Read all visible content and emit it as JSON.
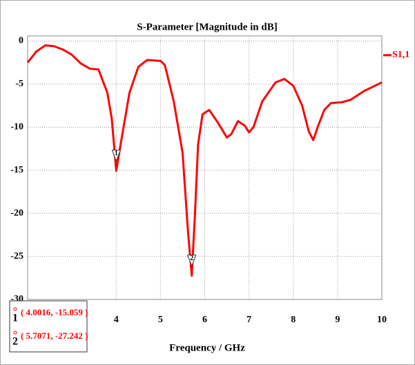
{
  "chart_data": {
    "type": "line",
    "title": "S-Parameter [Magnitude in dB]",
    "xlabel": "Frequency / GHz",
    "xlim": [
      2,
      10
    ],
    "ylim": [
      -30,
      0.6
    ],
    "xticks": [
      4,
      5,
      6,
      7,
      8,
      9,
      10
    ],
    "yticks": [
      0,
      -5,
      -10,
      -15,
      -20,
      -25,
      -30
    ],
    "grid": true,
    "legend": "upper right",
    "series": [
      {
        "name": "S1,1",
        "color": "#ff0000",
        "x": [
          2.0,
          2.2,
          2.4,
          2.6,
          2.8,
          3.0,
          3.2,
          3.4,
          3.6,
          3.8,
          3.9,
          4.0016,
          4.1,
          4.3,
          4.5,
          4.7,
          5.0,
          5.1,
          5.3,
          5.5,
          5.62,
          5.7071,
          5.78,
          5.85,
          5.95,
          6.1,
          6.3,
          6.5,
          6.6,
          6.75,
          6.9,
          7.0,
          7.1,
          7.3,
          7.6,
          7.8,
          8.0,
          8.2,
          8.35,
          8.45,
          8.55,
          8.7,
          8.85,
          9.1,
          9.3,
          9.6,
          10.0
        ],
        "values": [
          -2.5,
          -1.2,
          -0.5,
          -0.6,
          -1.0,
          -1.6,
          -2.6,
          -3.2,
          -3.3,
          -6.0,
          -9.0,
          -15.059,
          -12.0,
          -6.0,
          -3.0,
          -2.2,
          -2.3,
          -2.8,
          -7.0,
          -13.0,
          -22.0,
          -27.242,
          -20.0,
          -12.0,
          -8.5,
          -8.0,
          -9.5,
          -11.2,
          -10.8,
          -9.3,
          -9.8,
          -10.6,
          -10.0,
          -7.0,
          -4.8,
          -4.4,
          -5.2,
          -7.5,
          -10.5,
          -11.5,
          -10.0,
          -8.0,
          -7.2,
          -7.1,
          -6.8,
          -5.8,
          -4.8
        ]
      }
    ],
    "markers": [
      {
        "id": "1",
        "x": 4.0016,
        "y": -15.059,
        "label": "( 4.0016, -15.059 )"
      },
      {
        "id": "2",
        "x": 5.7071,
        "y": -27.242,
        "label": "( 5.7071, -27.242 )"
      }
    ]
  }
}
